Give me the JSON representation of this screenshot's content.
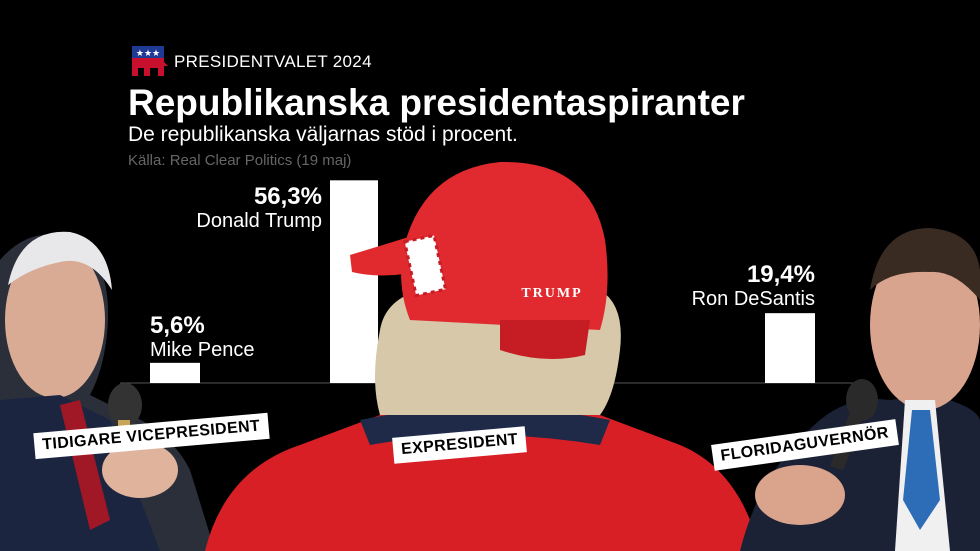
{
  "header": {
    "kicker": "PRESIDENTVALET 2024",
    "title": "Republikanska presidentaspiranter",
    "subtitle": "De republikanska väljarnas stöd i procent.",
    "source": "Källa: Real Clear Politics (19 maj)"
  },
  "captions": {
    "pence": "TIDIGARE VICEPRESIDENT",
    "trump": "EXPRESIDENT",
    "desantis": "FLORIDAGUVERNÖR"
  },
  "cap_text": "TRUMP",
  "colors": {
    "background": "#000000",
    "bar": "#ffffff",
    "text": "#ffffff",
    "source": "#666666",
    "cap": "#d91f26",
    "party": "#c8102e"
  },
  "chart_data": {
    "type": "bar",
    "categories": [
      "Mike Pence",
      "Donald Trump",
      "Ron DeSantis"
    ],
    "values": [
      5.6,
      56.3,
      19.4
    ],
    "value_labels": [
      "5,6%",
      "56,3%",
      "19,4%"
    ],
    "title": "Republikanska presidentaspiranter",
    "ylim": [
      0,
      60
    ],
    "grid": false,
    "legend": "none"
  }
}
